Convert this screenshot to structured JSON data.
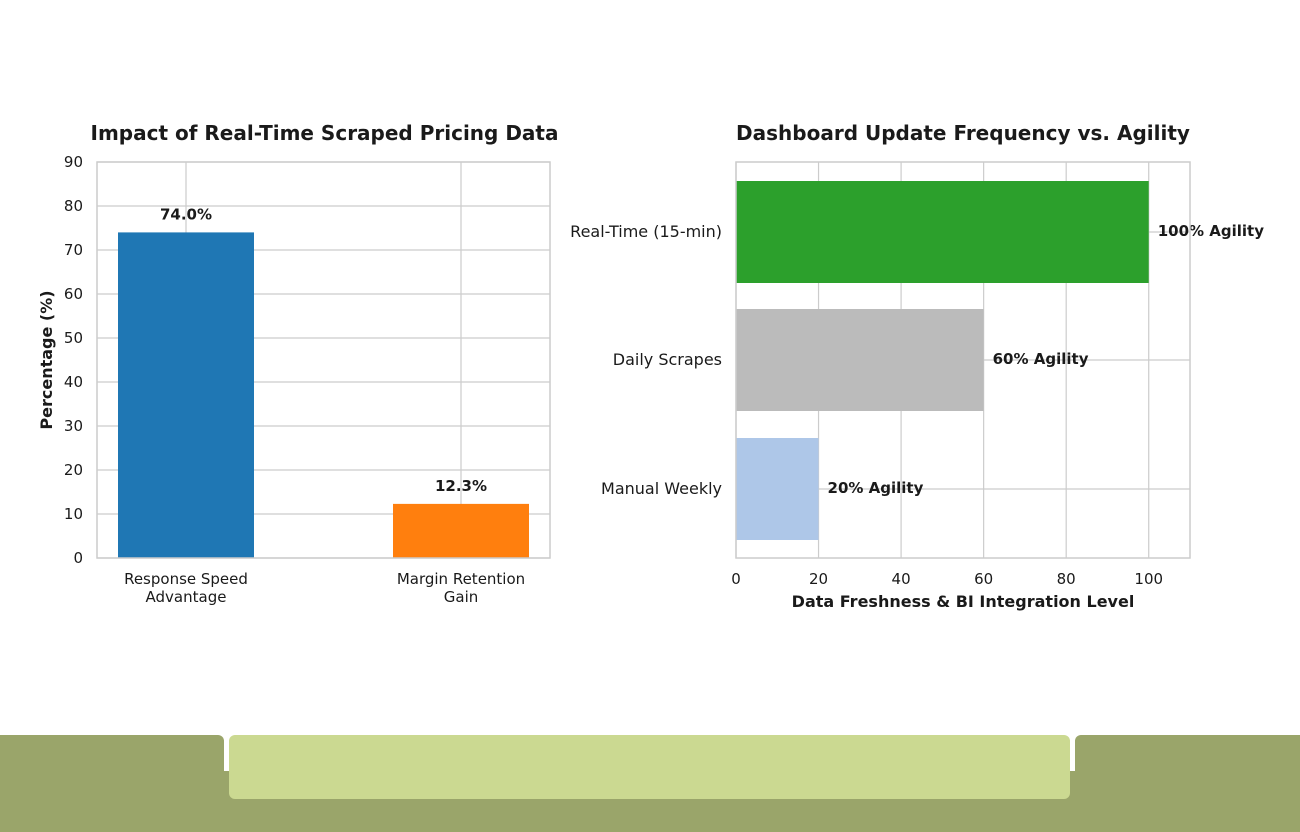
{
  "chart_data": [
    {
      "type": "bar",
      "title": "Impact of Real-Time Scraped Pricing Data",
      "xlabel": "",
      "ylabel": "Percentage (%)",
      "categories": [
        "Response Speed\nAdvantage",
        "Margin Retention\nGain"
      ],
      "values": [
        74.0,
        12.3
      ],
      "data_labels": [
        "74.0%",
        "12.3%"
      ],
      "colors": [
        "#1f77b4",
        "#ff7f0e"
      ],
      "ylim": [
        0,
        90
      ],
      "yticks": [
        0,
        10,
        20,
        30,
        40,
        50,
        60,
        70,
        80,
        90
      ],
      "grid": true
    },
    {
      "type": "bar",
      "orientation": "horizontal",
      "title": "Dashboard Update Frequency vs. Agility",
      "xlabel": "Data Freshness & BI Integration Level",
      "ylabel": "",
      "categories": [
        "Real-Time (15-min)",
        "Daily Scrapes",
        "Manual Weekly"
      ],
      "values": [
        100,
        60,
        20
      ],
      "data_labels": [
        "100% Agility",
        "60% Agility",
        "20% Agility"
      ],
      "colors": [
        "#2ca02c",
        "#bbbbbb",
        "#aec7e8"
      ],
      "xlim": [
        0,
        110
      ],
      "xticks": [
        0,
        20,
        40,
        60,
        80,
        100
      ],
      "grid": true
    }
  ],
  "theme": {
    "grid_color": "#cccccc",
    "frame_color": "#cccccc",
    "footer_dark": "#9aa56a",
    "footer_light": "#cbd991"
  }
}
